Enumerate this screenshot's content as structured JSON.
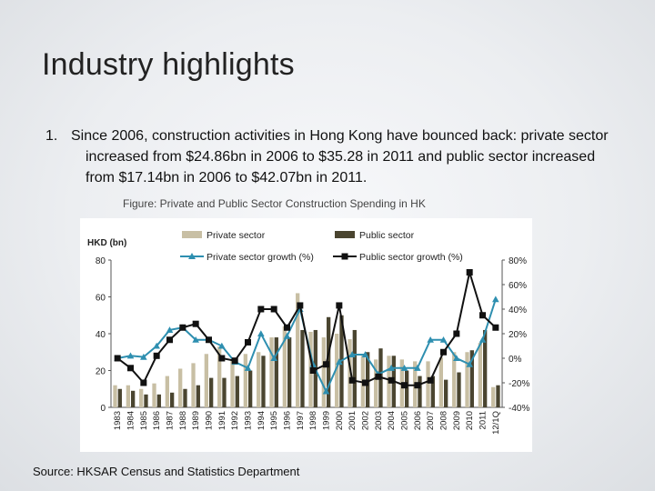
{
  "slide": {
    "title": "Industry highlights",
    "bullet_number": "1.",
    "bullet_text": "Since 2006, construction activities in Hong Kong have bounced back: private sector increased from $24.86bn in 2006 to $35.28 in 2011 and public sector increased from $17.14bn in 2006 to $42.07bn in 2011.",
    "figure_caption": "Figure: Private and Public Sector Construction Spending in HK",
    "source": "Source: HKSAR Census and Statistics Department"
  },
  "colors": {
    "private_bar": "#c8bfa4",
    "public_bar": "#4a4530",
    "private_growth": "#2e8fb0",
    "public_growth": "#111111"
  },
  "chart_data": {
    "type": "bar",
    "ylabel": "HKD (bn)",
    "ylim": [
      0,
      80
    ],
    "y_ticks": [
      "0",
      "20",
      "40",
      "60",
      "80"
    ],
    "y2lim": [
      -40,
      80
    ],
    "y2_ticks": [
      "-40%",
      "-20%",
      "0%",
      "20%",
      "40%",
      "60%",
      "80%"
    ],
    "legend_position": "top",
    "categories": [
      "1983",
      "1984",
      "1985",
      "1986",
      "1987",
      "1988",
      "1989",
      "1990",
      "1991",
      "1992",
      "1993",
      "1994",
      "1995",
      "1996",
      "1997",
      "1998",
      "1999",
      "2000",
      "2001",
      "2002",
      "2003",
      "2004",
      "2005",
      "2006",
      "2007",
      "2008",
      "2009",
      "2010",
      "2011",
      "12/1Q"
    ],
    "bar_series": [
      {
        "name": "Private sector",
        "values": [
          12,
          12,
          10,
          13,
          17,
          21,
          24,
          29,
          33,
          26,
          29,
          30,
          38,
          44,
          62,
          41,
          38,
          40,
          37,
          28,
          26,
          28,
          26,
          25,
          25,
          27,
          30,
          30,
          35,
          11
        ]
      },
      {
        "name": "Public sector",
        "values": [
          10,
          9,
          7,
          7,
          8,
          10,
          12,
          16,
          16,
          17,
          20,
          28,
          38,
          38,
          42,
          42,
          49,
          50,
          42,
          30,
          32,
          28,
          20,
          17,
          17,
          15,
          19,
          31,
          42,
          12
        ]
      }
    ],
    "line_series": [
      {
        "name": "Private sector growth (%)",
        "values": [
          0,
          2,
          1,
          10,
          23,
          25,
          15,
          15,
          10,
          -3,
          -8,
          20,
          0,
          18,
          40,
          -5,
          -27,
          -3,
          3,
          3,
          -13,
          -8,
          -8,
          -8,
          15,
          15,
          0,
          -5,
          15,
          48
        ]
      },
      {
        "name": "Public sector growth (%)",
        "values": [
          0,
          -8,
          -20,
          2,
          15,
          25,
          28,
          15,
          0,
          -2,
          13,
          40,
          40,
          25,
          43,
          -10,
          -5,
          43,
          -18,
          -20,
          -15,
          -18,
          -22,
          -22,
          -18,
          5,
          20,
          70,
          35,
          25
        ]
      }
    ]
  }
}
